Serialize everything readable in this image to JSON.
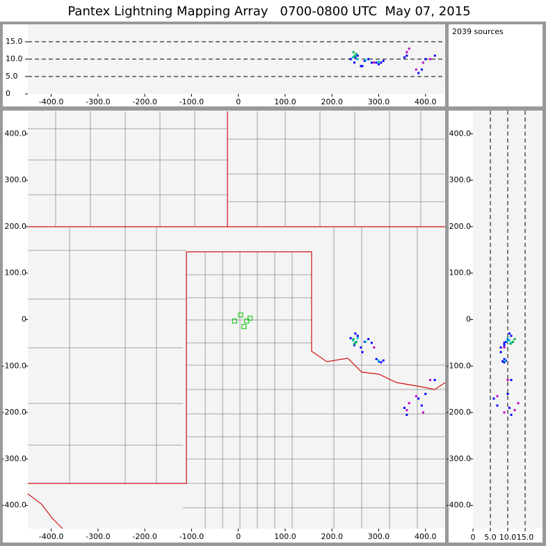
{
  "chart_data": {
    "type": "scatter",
    "title": "Pantex Lightning Mapping Array   0700-0800 UTC  May 07, 2015",
    "annotation": "2039 sources",
    "xlim": [
      -450,
      442
    ],
    "xticks": [
      {
        "value": -400,
        "label": "-400.0"
      },
      {
        "value": -300,
        "label": "-300.0"
      },
      {
        "value": -200,
        "label": "-200.0"
      },
      {
        "value": -100,
        "label": "-100.0"
      },
      0,
      {
        "value": 100,
        "label": "100.0"
      },
      {
        "value": 200,
        "label": "200.0"
      },
      {
        "value": 300,
        "label": "300.0"
      },
      {
        "value": 400,
        "label": "400.0"
      }
    ],
    "ylim": [
      -450,
      450
    ],
    "yticks": [
      {
        "value": -400,
        "label": "-400.0"
      },
      {
        "value": -300,
        "label": "-300.0"
      },
      {
        "value": -200,
        "label": "-200.0"
      },
      {
        "value": -100,
        "label": "-100.0"
      },
      0,
      {
        "value": 100,
        "label": "100.0"
      },
      {
        "value": 200,
        "label": "200.0"
      },
      {
        "value": 300,
        "label": "300.0"
      },
      {
        "value": 400,
        "label": "400.0"
      }
    ],
    "altlim": [
      0,
      20
    ],
    "altticks": [
      0,
      {
        "value": 5,
        "label": "5.0"
      },
      {
        "value": 10,
        "label": "10.0"
      },
      {
        "value": 15,
        "label": "15.0"
      }
    ],
    "grid": true,
    "series": [
      {
        "color": "#0000ff",
        "x": [
          240,
          248,
          255,
          262,
          270,
          278,
          285,
          295,
          300,
          305,
          310,
          355,
          360,
          385,
          392,
          400,
          420,
          250,
          265
        ],
        "y": [
          -40,
          -55,
          -35,
          -60,
          -48,
          -42,
          -50,
          -85,
          -90,
          -92,
          -88,
          -190,
          -205,
          -170,
          -185,
          -160,
          -130,
          -30,
          -70
        ],
        "alt": [
          10,
          9,
          11,
          8,
          9.5,
          10,
          9,
          9,
          8.5,
          9,
          9.5,
          10.5,
          11,
          6,
          7,
          10,
          11,
          10.5,
          8
        ]
      },
      {
        "color": "#00c8c8",
        "x": [
          245,
          250,
          255,
          272,
          300
        ],
        "y": [
          -45,
          -50,
          -40,
          -47,
          -88
        ],
        "alt": [
          10.5,
          11,
          10,
          9.8,
          9.2
        ]
      },
      {
        "color": "#00b050",
        "x": [
          246,
          252,
          248
        ],
        "y": [
          -42,
          -48,
          -52
        ],
        "alt": [
          12,
          11.5,
          10.8
        ]
      },
      {
        "color": "#c000c0",
        "x": [
          360,
          365,
          380,
          395,
          410,
          290
        ],
        "y": [
          -195,
          -180,
          -165,
          -200,
          -130,
          -60
        ],
        "alt": [
          12,
          13,
          7,
          9,
          10,
          9
        ]
      }
    ],
    "stations": {
      "color": "#22cc22",
      "x": [
        -8,
        5,
        18,
        25,
        12
      ],
      "y": [
        -3,
        10,
        -3,
        3,
        -15
      ]
    }
  }
}
